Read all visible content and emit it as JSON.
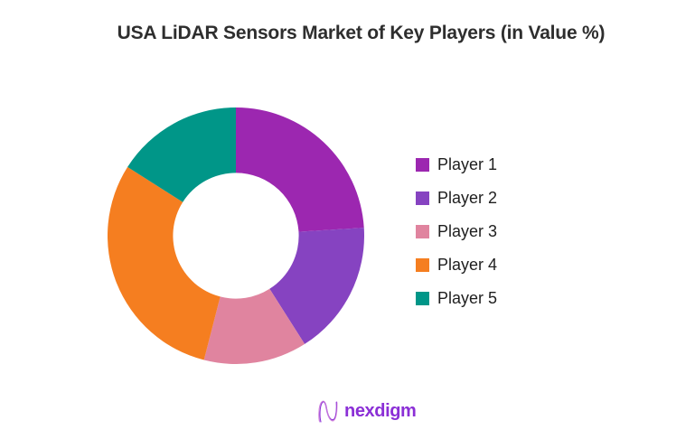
{
  "title": "USA LiDAR Sensors Market of Key Players (in Value %)",
  "title_color": "#2e2e2e",
  "chart_data": {
    "type": "pie",
    "subtype": "donut",
    "title": "USA LiDAR Sensors Market of Key Players (in Value %)",
    "unit": "% of market value",
    "labels": [
      "Player 1",
      "Player 2",
      "Player 3",
      "Player 4",
      "Player 5"
    ],
    "values": [
      24,
      17,
      13,
      30,
      16
    ],
    "colors": [
      "#9c27b0",
      "#8643c1",
      "#e0849f",
      "#f57e20",
      "#009688"
    ],
    "start_angle_deg": 0,
    "direction": "clockwise",
    "inner_radius_ratio": 0.49,
    "legend_position": "right",
    "data_labels_shown": false
  },
  "legend": {
    "items": [
      {
        "label": "Player 1",
        "color": "#9c27b0"
      },
      {
        "label": "Player 2",
        "color": "#8643c1"
      },
      {
        "label": "Player 3",
        "color": "#e0849f"
      },
      {
        "label": "Player 4",
        "color": "#f57e20"
      },
      {
        "label": "Player 5",
        "color": "#009688"
      }
    ]
  },
  "footer": {
    "brand": "nexdigm",
    "brand_color": "#8b2fd6",
    "logo_icon": "nexdigm-wave-n-icon"
  }
}
